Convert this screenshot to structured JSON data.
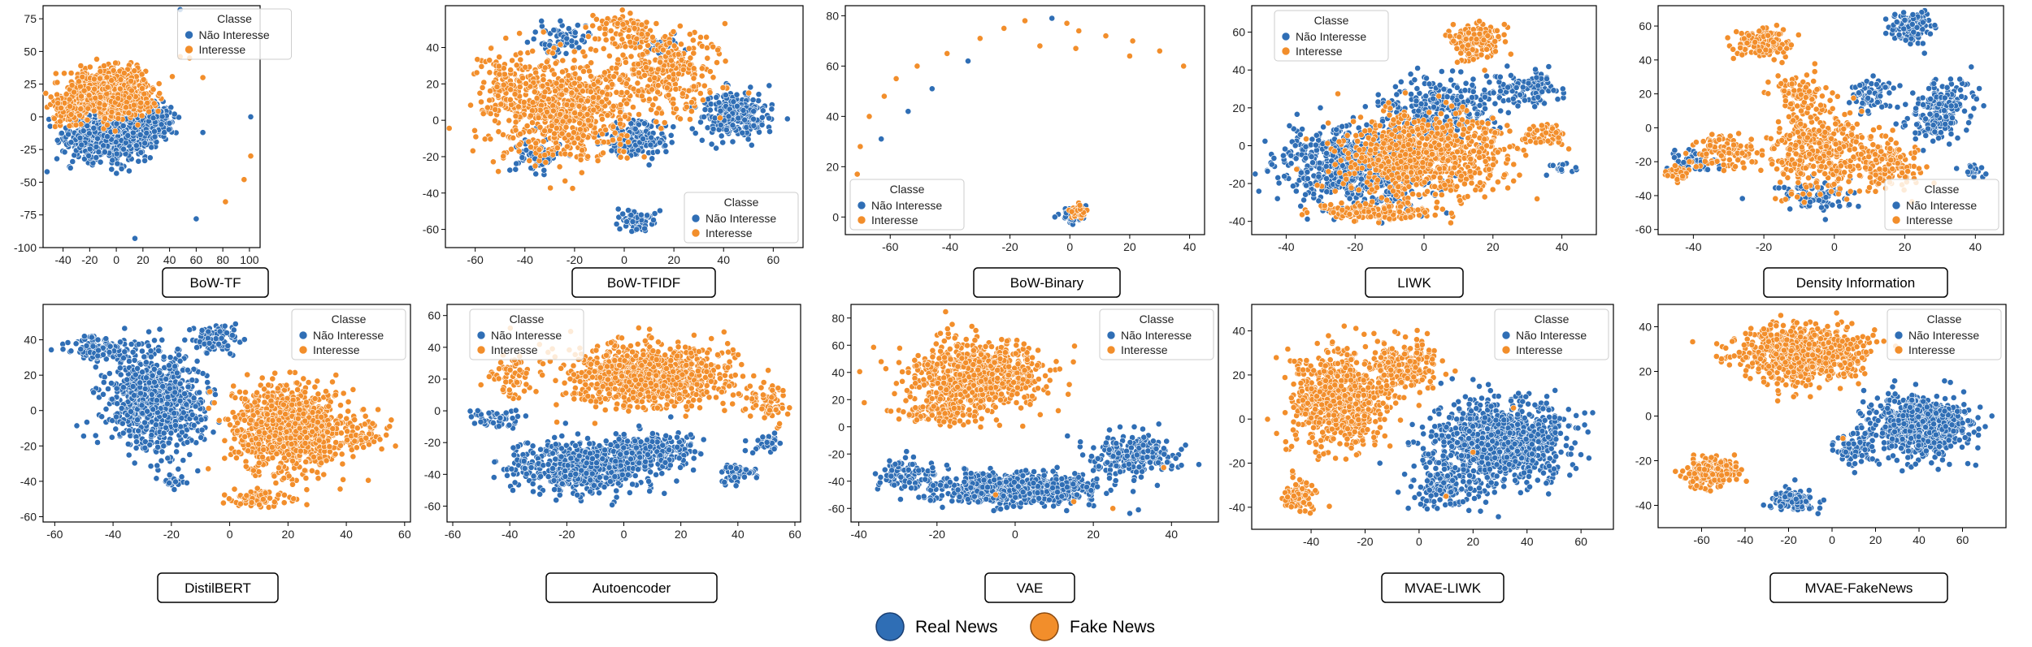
{
  "colors": {
    "real": "#2f6eb5",
    "fake": "#f28e2b",
    "point_edge": "#ffffff",
    "axes": "#000000",
    "panel_bg": "#ffffff"
  },
  "legend_box": {
    "title": "Classe",
    "entries": [
      {
        "label": "Não Interesse",
        "color": "#2f6eb5"
      },
      {
        "label": "Interesse",
        "color": "#f28e2b"
      }
    ]
  },
  "footer_legend": {
    "entries": [
      {
        "label": "Real News",
        "color": "#2f6eb5"
      },
      {
        "label": "Fake News",
        "color": "#f28e2b"
      }
    ]
  },
  "chart_data": [
    {
      "type": "scatter",
      "title": "BoW-TF",
      "legend_position": "top-center",
      "xlim": [
        -55,
        108
      ],
      "ylim": [
        -100,
        85
      ],
      "xticks": [
        -40,
        -20,
        0,
        20,
        40,
        60,
        80,
        100
      ],
      "yticks": [
        -100,
        -75,
        -50,
        -25,
        0,
        25,
        50,
        75
      ],
      "series": [
        {
          "class": "Não Interesse",
          "clusters": [
            [
              -4,
              -15,
              26,
              14,
              820
            ],
            [
              32,
              -2,
              10,
              12,
              120
            ]
          ],
          "points": [
            [
              -52,
              -42
            ],
            [
              48,
              82
            ],
            [
              60,
              -78
            ],
            [
              101,
              0
            ],
            [
              65,
              -12
            ],
            [
              14,
              -93
            ]
          ]
        },
        {
          "class": "Interesse",
          "clusters": [
            [
              -5,
              18,
              25,
              15,
              820
            ],
            [
              -38,
              5,
              10,
              10,
              80
            ]
          ],
          "points": [
            [
              55,
              45
            ],
            [
              65,
              30
            ],
            [
              96,
              -48
            ],
            [
              101,
              -30
            ],
            [
              82,
              -65
            ],
            [
              48,
              46
            ],
            [
              -53,
              18
            ]
          ]
        }
      ]
    },
    {
      "type": "scatter",
      "title": "BoW-TFIDF",
      "legend_position": "lower-right",
      "xlim": [
        -72,
        72
      ],
      "ylim": [
        -70,
        63
      ],
      "xticks": [
        -60,
        -40,
        -20,
        0,
        20,
        40,
        60
      ],
      "yticks": [
        -60,
        -40,
        -20,
        0,
        20,
        40
      ],
      "series": [
        {
          "class": "Não Interesse",
          "clusters": [
            [
              -25,
              45,
              8,
              7,
              70
            ],
            [
              5,
              -10,
              10,
              8,
              180
            ],
            [
              45,
              3,
              11,
              11,
              260
            ],
            [
              5,
              -55,
              6,
              5,
              70
            ],
            [
              -35,
              -20,
              8,
              8,
              60
            ],
            [
              15,
              42,
              5,
              4,
              40
            ]
          ],
          "points": []
        },
        {
          "class": "Interesse",
          "clusters": [
            [
              -25,
              5,
              22,
              25,
              650
            ],
            [
              15,
              25,
              20,
              18,
              320
            ],
            [
              0,
              50,
              10,
              8,
              90
            ],
            [
              -50,
              20,
              8,
              15,
              90
            ]
          ],
          "points": []
        }
      ]
    },
    {
      "type": "scatter",
      "title": "BoW-Binary",
      "legend_position": "lower-left",
      "xlim": [
        -75,
        45
      ],
      "ylim": [
        -7,
        84
      ],
      "xticks": [
        -60,
        -40,
        -20,
        0,
        20,
        40
      ],
      "yticks": [
        0,
        20,
        40,
        60,
        80
      ],
      "series": [
        {
          "class": "Não Interesse",
          "clusters": [
            [
              1,
              1,
              3,
              2.5,
              70
            ]
          ],
          "points": [
            [
              -63,
              31
            ],
            [
              -46,
              51
            ],
            [
              -34,
              62
            ],
            [
              -6,
              79
            ],
            [
              -54,
              42
            ],
            [
              -5,
              0
            ]
          ]
        },
        {
          "class": "Interesse",
          "clusters": [
            [
              3,
              2,
              2.5,
              2,
              60
            ]
          ],
          "points": [
            [
              -71,
              17
            ],
            [
              -70,
              28
            ],
            [
              -67,
              40
            ],
            [
              -62,
              48
            ],
            [
              -58,
              55
            ],
            [
              -51,
              60
            ],
            [
              -41,
              65
            ],
            [
              -30,
              71
            ],
            [
              -22,
              75
            ],
            [
              -15,
              78
            ],
            [
              -1,
              77
            ],
            [
              3,
              74
            ],
            [
              12,
              72
            ],
            [
              21,
              70
            ],
            [
              30,
              66
            ],
            [
              38,
              60
            ],
            [
              20,
              64
            ],
            [
              2,
              67
            ],
            [
              -10,
              68
            ]
          ]
        }
      ]
    },
    {
      "type": "scatter",
      "title": "LIWK",
      "legend_position": "top-left",
      "xlim": [
        -50,
        50
      ],
      "ylim": [
        -47,
        74
      ],
      "xticks": [
        -40,
        -20,
        0,
        20,
        40
      ],
      "yticks": [
        -40,
        -20,
        0,
        20,
        40,
        60
      ],
      "series": [
        {
          "class": "Não Interesse",
          "clusters": [
            [
              -20,
              -10,
              18,
              18,
              700
            ],
            [
              5,
              20,
              14,
              14,
              300
            ],
            [
              30,
              30,
              8,
              8,
              100
            ],
            [
              40,
              -12,
              3,
              3,
              20
            ]
          ],
          "points": []
        },
        {
          "class": "Interesse",
          "clusters": [
            [
              0,
              -5,
              20,
              18,
              800
            ],
            [
              15,
              55,
              6,
              8,
              150
            ],
            [
              -15,
              -35,
              15,
              4,
              150
            ],
            [
              35,
              5,
              6,
              6,
              50
            ]
          ],
          "points": []
        }
      ]
    },
    {
      "type": "scatter",
      "title": "Density Information",
      "legend_position": "lower-right",
      "xlim": [
        -50,
        48
      ],
      "ylim": [
        -63,
        72
      ],
      "xticks": [
        -40,
        -20,
        0,
        20,
        40
      ],
      "yticks": [
        -60,
        -40,
        -20,
        0,
        20,
        40,
        60
      ],
      "series": [
        {
          "class": "Não Interesse",
          "clusters": [
            [
              22,
              60,
              5,
              8,
              110
            ],
            [
              30,
              10,
              7,
              15,
              210
            ],
            [
              -5,
              -40,
              10,
              8,
              90
            ],
            [
              -40,
              -20,
              6,
              6,
              50
            ],
            [
              10,
              20,
              5,
              10,
              70
            ],
            [
              40,
              -25,
              3,
              3,
              20
            ]
          ],
          "points": []
        },
        {
          "class": "Interesse",
          "clusters": [
            [
              -20,
              50,
              7,
              7,
              140
            ],
            [
              -5,
              -15,
              12,
              20,
              360
            ],
            [
              -30,
              -15,
              8,
              8,
              110
            ],
            [
              15,
              -20,
              8,
              12,
              150
            ],
            [
              -10,
              20,
              6,
              10,
              90
            ],
            [
              -45,
              -27,
              4,
              3,
              40
            ]
          ],
          "points": []
        }
      ]
    },
    {
      "type": "scatter",
      "title": "DistilBERT",
      "legend_position": "top-right",
      "xlim": [
        -64,
        62
      ],
      "ylim": [
        -63,
        60
      ],
      "xticks": [
        -60,
        -40,
        -20,
        0,
        20,
        40,
        60
      ],
      "yticks": [
        -60,
        -40,
        -20,
        0,
        20,
        40
      ],
      "series": [
        {
          "class": "Não Interesse",
          "clusters": [
            [
              -25,
              5,
              14,
              24,
              800
            ],
            [
              -45,
              35,
              8,
              5,
              120
            ],
            [
              -5,
              40,
              6,
              8,
              90
            ],
            [
              -20,
              -40,
              4,
              3,
              25
            ]
          ],
          "points": []
        },
        {
          "class": "Interesse",
          "clusters": [
            [
              20,
              -10,
              16,
              20,
              900
            ],
            [
              10,
              -50,
              8,
              4,
              80
            ],
            [
              45,
              -15,
              8,
              8,
              80
            ]
          ],
          "points": []
        }
      ]
    },
    {
      "type": "scatter",
      "title": "Autoencoder",
      "legend_position": "top-left",
      "xlim": [
        -62,
        62
      ],
      "ylim": [
        -70,
        67
      ],
      "xticks": [
        -60,
        -40,
        -20,
        0,
        20,
        40,
        60
      ],
      "yticks": [
        -60,
        -40,
        -20,
        0,
        20,
        40,
        60
      ],
      "series": [
        {
          "class": "Não Interesse",
          "clusters": [
            [
              -15,
              -35,
              20,
              13,
              600
            ],
            [
              10,
              -25,
              12,
              10,
              250
            ],
            [
              40,
              -40,
              5,
              5,
              60
            ],
            [
              -45,
              -5,
              8,
              5,
              50
            ],
            [
              50,
              -20,
              5,
              5,
              40
            ]
          ],
          "points": []
        },
        {
          "class": "Interesse",
          "clusters": [
            [
              8,
              22,
              25,
              16,
              900
            ],
            [
              -40,
              20,
              6,
              10,
              60
            ],
            [
              50,
              5,
              6,
              10,
              70
            ]
          ],
          "points": []
        }
      ]
    },
    {
      "type": "scatter",
      "title": "VAE",
      "legend_position": "top-right",
      "xlim": [
        -42,
        52
      ],
      "ylim": [
        -70,
        90
      ],
      "xticks": [
        -40,
        -20,
        0,
        20,
        40
      ],
      "yticks": [
        -60,
        -40,
        -20,
        0,
        20,
        40,
        60,
        80
      ],
      "series": [
        {
          "class": "Não Interesse",
          "clusters": [
            [
              0,
              -45,
              18,
              10,
              700
            ],
            [
              30,
              -20,
              9,
              12,
              250
            ],
            [
              -28,
              -35,
              6,
              10,
              80
            ]
          ],
          "points": []
        },
        {
          "class": "Interesse",
          "clusters": [
            [
              -10,
              38,
              14,
              22,
              800
            ],
            [
              -20,
              10,
              8,
              8,
              80
            ]
          ],
          "points": [
            [
              15,
              -55
            ],
            [
              25,
              -60
            ],
            [
              -5,
              -50
            ],
            [
              38,
              -30
            ]
          ]
        }
      ]
    },
    {
      "type": "scatter",
      "title": "MVAE-LIWK",
      "legend_position": "top-right",
      "xlim": [
        -62,
        72
      ],
      "ylim": [
        -50,
        52
      ],
      "xticks": [
        -40,
        -20,
        0,
        20,
        40,
        60
      ],
      "yticks": [
        -40,
        -20,
        0,
        20,
        40
      ],
      "series": [
        {
          "class": "Não Interesse",
          "clusters": [
            [
              30,
              -10,
              20,
              15,
              1000
            ],
            [
              10,
              -30,
              10,
              8,
              150
            ]
          ],
          "points": []
        },
        {
          "class": "Interesse",
          "clusters": [
            [
              -30,
              10,
              15,
              18,
              700
            ],
            [
              -5,
              25,
              10,
              10,
              200
            ],
            [
              -45,
              -35,
              5,
              7,
              80
            ]
          ],
          "points": [
            [
              20,
              -15
            ],
            [
              35,
              5
            ],
            [
              10,
              -35
            ]
          ]
        }
      ]
    },
    {
      "type": "scatter",
      "title": "MVAE-FakeNews",
      "legend_position": "top-right",
      "xlim": [
        -80,
        80
      ],
      "ylim": [
        -50,
        50
      ],
      "xticks": [
        -60,
        -40,
        -20,
        0,
        20,
        40,
        60
      ],
      "yticks": [
        -40,
        -20,
        0,
        20,
        40
      ],
      "series": [
        {
          "class": "Não Interesse",
          "clusters": [
            [
              40,
              -5,
              18,
              11,
              800
            ],
            [
              -18,
              -38,
              8,
              4,
              150
            ],
            [
              10,
              -15,
              8,
              6,
              80
            ]
          ],
          "points": []
        },
        {
          "class": "Interesse",
          "clusters": [
            [
              -15,
              28,
              22,
              10,
              800
            ],
            [
              -55,
              -25,
              9,
              5,
              250
            ]
          ],
          "points": [
            [
              5,
              -10
            ]
          ]
        }
      ]
    }
  ]
}
